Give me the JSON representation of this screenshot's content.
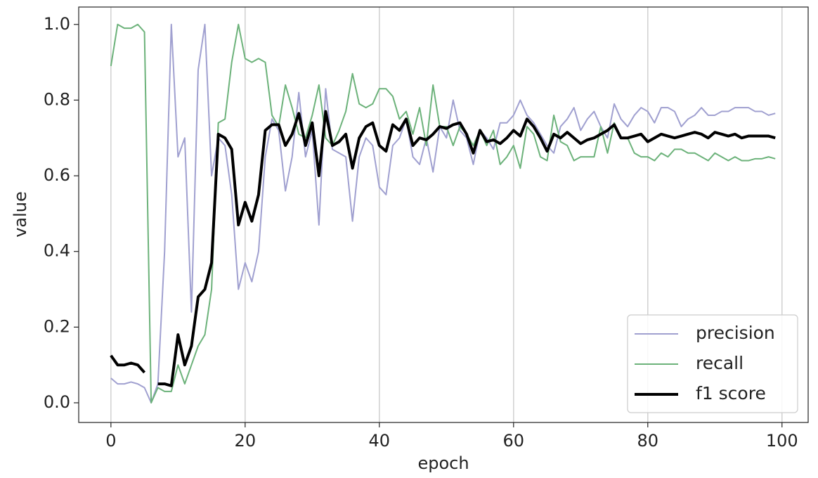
{
  "chart_data": {
    "type": "line",
    "x_label": "epoch",
    "y_label": "value",
    "x": [
      0,
      1,
      2,
      3,
      4,
      5,
      6,
      7,
      8,
      9,
      10,
      11,
      12,
      13,
      14,
      15,
      16,
      17,
      18,
      19,
      20,
      21,
      22,
      23,
      24,
      25,
      26,
      27,
      28,
      29,
      30,
      31,
      32,
      33,
      34,
      35,
      36,
      37,
      38,
      39,
      40,
      41,
      42,
      43,
      44,
      45,
      46,
      47,
      48,
      49,
      50,
      51,
      52,
      53,
      54,
      55,
      56,
      57,
      58,
      59,
      60,
      61,
      62,
      63,
      64,
      65,
      66,
      67,
      68,
      69,
      70,
      71,
      72,
      73,
      74,
      75,
      76,
      77,
      78,
      79,
      80,
      81,
      82,
      83,
      84,
      85,
      86,
      87,
      88,
      89,
      90,
      91,
      92,
      93,
      94,
      95,
      96,
      97,
      98,
      99
    ],
    "series": [
      {
        "name": "precision",
        "color": "#a0a0d0",
        "linewidth": 2,
        "values": [
          0.065,
          0.05,
          0.05,
          0.055,
          0.05,
          0.04,
          0.0,
          0.05,
          0.4,
          1.0,
          0.65,
          0.7,
          0.24,
          0.88,
          1.0,
          0.6,
          0.7,
          0.68,
          0.55,
          0.3,
          0.37,
          0.32,
          0.4,
          0.65,
          0.75,
          0.72,
          0.56,
          0.65,
          0.82,
          0.65,
          0.72,
          0.47,
          0.83,
          0.67,
          0.66,
          0.65,
          0.48,
          0.65,
          0.7,
          0.68,
          0.57,
          0.55,
          0.68,
          0.7,
          0.75,
          0.65,
          0.63,
          0.7,
          0.61,
          0.73,
          0.7,
          0.8,
          0.72,
          0.7,
          0.63,
          0.72,
          0.7,
          0.67,
          0.74,
          0.74,
          0.76,
          0.8,
          0.76,
          0.74,
          0.71,
          0.68,
          0.66,
          0.73,
          0.75,
          0.78,
          0.72,
          0.75,
          0.77,
          0.73,
          0.7,
          0.79,
          0.75,
          0.73,
          0.76,
          0.78,
          0.77,
          0.74,
          0.78,
          0.78,
          0.77,
          0.73,
          0.75,
          0.76,
          0.78,
          0.76,
          0.76,
          0.77,
          0.77,
          0.78,
          0.78,
          0.78,
          0.77,
          0.77,
          0.76,
          0.765
        ]
      },
      {
        "name": "recall",
        "color": "#6cb27a",
        "linewidth": 2,
        "values": [
          0.89,
          1.0,
          0.99,
          0.99,
          1.0,
          0.98,
          0.0,
          0.04,
          0.03,
          0.03,
          0.1,
          0.05,
          0.1,
          0.15,
          0.18,
          0.3,
          0.74,
          0.75,
          0.9,
          1.0,
          0.91,
          0.9,
          0.91,
          0.9,
          0.76,
          0.73,
          0.84,
          0.78,
          0.71,
          0.7,
          0.76,
          0.84,
          0.7,
          0.68,
          0.72,
          0.77,
          0.87,
          0.79,
          0.78,
          0.79,
          0.83,
          0.83,
          0.81,
          0.75,
          0.77,
          0.71,
          0.78,
          0.68,
          0.84,
          0.73,
          0.73,
          0.68,
          0.73,
          0.71,
          0.68,
          0.72,
          0.68,
          0.72,
          0.63,
          0.65,
          0.68,
          0.62,
          0.73,
          0.71,
          0.65,
          0.64,
          0.76,
          0.69,
          0.68,
          0.64,
          0.65,
          0.65,
          0.65,
          0.73,
          0.66,
          0.74,
          0.7,
          0.7,
          0.66,
          0.65,
          0.65,
          0.64,
          0.66,
          0.65,
          0.67,
          0.67,
          0.66,
          0.66,
          0.65,
          0.64,
          0.66,
          0.65,
          0.64,
          0.65,
          0.64,
          0.64,
          0.645,
          0.645,
          0.65,
          0.645
        ]
      },
      {
        "name": "f1 score",
        "color": "#000000",
        "linewidth": 4,
        "values": [
          0.125,
          0.1,
          0.1,
          0.105,
          0.1,
          0.08,
          null,
          0.05,
          0.05,
          0.045,
          0.18,
          0.1,
          0.15,
          0.28,
          0.3,
          0.37,
          0.71,
          0.7,
          0.67,
          0.47,
          0.53,
          0.48,
          0.55,
          0.72,
          0.735,
          0.735,
          0.68,
          0.71,
          0.765,
          0.68,
          0.74,
          0.6,
          0.77,
          0.68,
          0.69,
          0.71,
          0.62,
          0.7,
          0.73,
          0.74,
          0.68,
          0.665,
          0.735,
          0.72,
          0.75,
          0.68,
          0.7,
          0.695,
          0.71,
          0.73,
          0.725,
          0.735,
          0.74,
          0.71,
          0.66,
          0.72,
          0.69,
          0.695,
          0.685,
          0.7,
          0.72,
          0.705,
          0.75,
          0.73,
          0.7,
          0.665,
          0.71,
          0.7,
          0.715,
          0.7,
          0.685,
          0.695,
          0.7,
          0.71,
          0.72,
          0.735,
          0.7,
          0.7,
          0.705,
          0.71,
          0.69,
          0.7,
          0.71,
          0.705,
          0.7,
          0.705,
          0.71,
          0.715,
          0.71,
          0.7,
          0.715,
          0.71,
          0.705,
          0.71,
          0.7,
          0.705,
          0.705,
          0.705,
          0.705,
          0.7
        ]
      }
    ],
    "xlim": [
      -4.8,
      103.9
    ],
    "ylim": [
      -0.052,
      1.046
    ],
    "xticks": [
      0,
      20,
      40,
      60,
      80,
      100
    ],
    "yticks": [
      {
        "value": 0,
        "label": "0.0"
      },
      {
        "value": 0.2,
        "label": "0.2"
      },
      {
        "value": 0.4,
        "label": "0.4"
      },
      {
        "value": 0.6,
        "label": "0.6"
      },
      {
        "value": 0.8,
        "label": "0.8"
      },
      {
        "value": 1,
        "label": "1.0"
      }
    ],
    "grid": "x",
    "legend": "lower right"
  }
}
